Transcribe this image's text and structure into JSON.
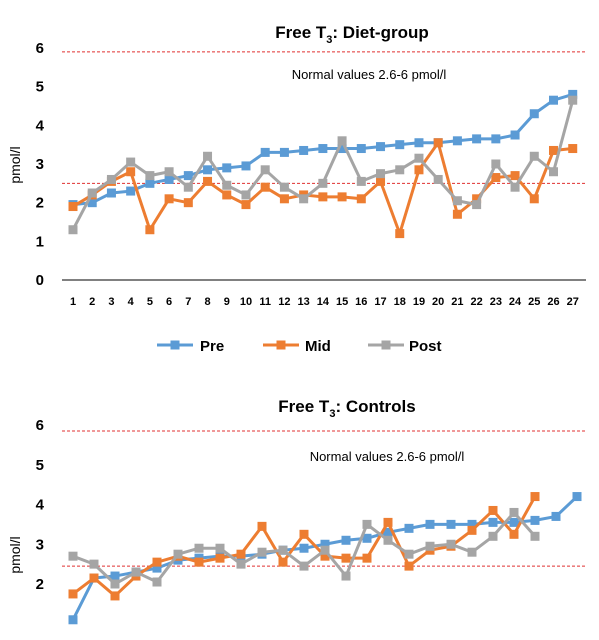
{
  "chart_data": [
    {
      "type": "line",
      "title_main": "Free T",
      "title_sub": "3",
      "title_rest": ": Diet-group",
      "ylabel": "pmol/l",
      "xlabel": "",
      "ylim": [
        0,
        6
      ],
      "yticks": [
        0,
        1,
        2,
        3,
        4,
        5,
        6
      ],
      "x": [
        1,
        2,
        3,
        4,
        5,
        6,
        7,
        8,
        9,
        10,
        11,
        12,
        13,
        14,
        15,
        16,
        17,
        18,
        19,
        20,
        21,
        22,
        23,
        24,
        25,
        26,
        27
      ],
      "annotation": "Normal values 2.6-6  pmol/l",
      "reference_lines": [
        2.5,
        5.9
      ],
      "legend": "bottom",
      "series": [
        {
          "name": "Pre",
          "color": "#5b9bd5",
          "values": [
            1.95,
            2.0,
            2.25,
            2.3,
            2.5,
            2.6,
            2.7,
            2.85,
            2.9,
            2.95,
            3.3,
            3.3,
            3.35,
            3.4,
            3.4,
            3.4,
            3.45,
            3.5,
            3.55,
            3.55,
            3.6,
            3.65,
            3.65,
            3.75,
            4.3,
            4.65,
            4.8
          ]
        },
        {
          "name": "Mid",
          "color": "#ed7d31",
          "values": [
            1.9,
            2.2,
            2.55,
            2.8,
            1.3,
            2.1,
            2.0,
            2.55,
            2.2,
            1.95,
            2.4,
            2.1,
            2.2,
            2.15,
            2.15,
            2.1,
            2.55,
            1.2,
            2.85,
            3.55,
            1.7,
            2.1,
            2.65,
            2.7,
            2.1,
            3.35,
            3.4
          ]
        },
        {
          "name": "Post",
          "color": "#a5a5a5",
          "values": [
            1.3,
            2.25,
            2.6,
            3.05,
            2.7,
            2.8,
            2.4,
            3.2,
            2.45,
            2.2,
            2.85,
            2.4,
            2.1,
            2.5,
            3.6,
            2.55,
            2.75,
            2.85,
            3.15,
            2.6,
            2.05,
            1.95,
            3.0,
            2.4,
            3.2,
            2.8,
            4.65
          ]
        }
      ]
    },
    {
      "type": "line",
      "title_main": "Free T",
      "title_sub": "3",
      "title_rest": ": Controls",
      "ylabel": "pmol/l",
      "xlabel": "",
      "ylim": [
        1.5,
        6
      ],
      "yticks": [
        2,
        3,
        4,
        5,
        6
      ],
      "annotation": "Normal values 2.6-6  pmol/l",
      "reference_lines": [
        2.45,
        5.85
      ],
      "series": [
        {
          "name": "Pre",
          "color": "#5b9bd5",
          "values": [
            1.1,
            2.15,
            2.2,
            2.3,
            2.4,
            2.6,
            2.65,
            2.7,
            2.7,
            2.75,
            2.85,
            2.9,
            3.0,
            3.1,
            3.15,
            3.3,
            3.4,
            3.5,
            3.5,
            3.5,
            3.55,
            3.55,
            3.6,
            3.7,
            4.2
          ]
        },
        {
          "name": "Mid",
          "color": "#ed7d31",
          "values": [
            1.75,
            2.15,
            1.7,
            2.2,
            2.55,
            2.7,
            2.55,
            2.65,
            2.75,
            3.45,
            2.55,
            3.25,
            2.7,
            2.65,
            2.65,
            3.55,
            2.45,
            2.85,
            2.95,
            3.35,
            3.85,
            3.25,
            4.2
          ]
        },
        {
          "name": "Post",
          "color": "#a5a5a5",
          "values": [
            2.7,
            2.5,
            2.0,
            2.3,
            2.05,
            2.75,
            2.9,
            2.9,
            2.5,
            2.8,
            2.85,
            2.45,
            2.85,
            2.2,
            3.5,
            3.1,
            2.75,
            2.95,
            3.0,
            2.8,
            3.2,
            3.8,
            3.2
          ]
        }
      ]
    }
  ]
}
